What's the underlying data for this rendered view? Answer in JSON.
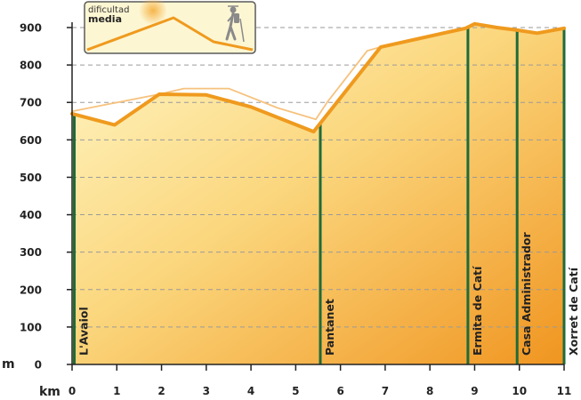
{
  "colors": {
    "profile_line": "#ef9a1e",
    "fill_light": "#fff4c0",
    "fill_dark": "#f4a838",
    "fill_deep": "#f09520",
    "waypoint_line": "#1e6b3a",
    "grid": "#9a9a9a"
  },
  "badge": {
    "line1": "dificultad",
    "line2": "media",
    "icon": "hiker-icon"
  },
  "chart_data": {
    "type": "area",
    "xlabel": "km",
    "ylabel": "m",
    "xlim": [
      0,
      11
    ],
    "ylim": [
      0,
      900
    ],
    "x_ticks": [
      0,
      1,
      2,
      3,
      4,
      5,
      6,
      7,
      8,
      9,
      10,
      11
    ],
    "y_ticks": [
      0,
      100,
      200,
      300,
      400,
      500,
      600,
      700,
      800,
      900
    ],
    "grid": "horizontal dashed",
    "series": [
      {
        "points": [
          [
            0,
            670
          ],
          [
            0.95,
            640
          ],
          [
            1.95,
            722
          ],
          [
            3.0,
            720
          ],
          [
            4.0,
            688
          ],
          [
            5.4,
            622
          ],
          [
            6.9,
            848
          ],
          [
            8.8,
            898
          ],
          [
            9.0,
            910
          ],
          [
            9.5,
            900
          ],
          [
            9.95,
            893
          ],
          [
            10.4,
            885
          ],
          [
            11.0,
            898
          ]
        ]
      }
    ],
    "shadow_points": [
      [
        0,
        676
      ],
      [
        0.8,
        695
      ],
      [
        1.95,
        722
      ],
      [
        2.5,
        737
      ],
      [
        3.5,
        737
      ],
      [
        4.6,
        685
      ],
      [
        5.45,
        655
      ],
      [
        5.7,
        700
      ],
      [
        6.6,
        838
      ],
      [
        6.9,
        848
      ]
    ],
    "waypoints": [
      {
        "km": 0.05,
        "label": "L'Avaiol"
      },
      {
        "km": 5.55,
        "label": "Pantanet"
      },
      {
        "km": 8.85,
        "label": "Ermita de Catí"
      },
      {
        "km": 9.95,
        "label": "Casa Administrador"
      },
      {
        "km": 11.0,
        "label": "Xorret de Catí"
      }
    ]
  }
}
